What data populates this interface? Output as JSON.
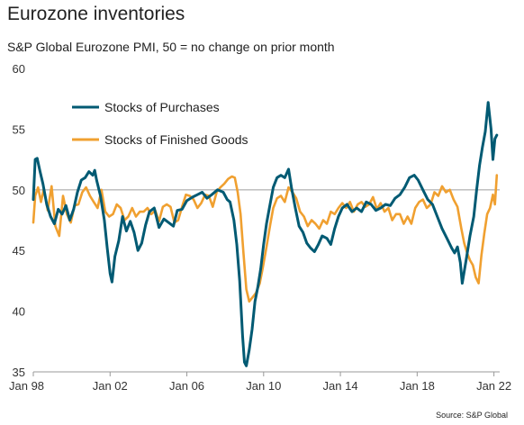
{
  "header": {
    "title": "Eurozone inventories",
    "subtitle": "S&P Global Eurozone PMI, 50 = no change on prior month"
  },
  "footer": {
    "source": "Source: S&P Global"
  },
  "chart_data": {
    "type": "line",
    "title": "Eurozone inventories",
    "subtitle": "S&P Global Eurozone PMI, 50 = no change on prior month",
    "xlabel": "",
    "ylabel": "",
    "ylim": [
      35,
      60
    ],
    "yticks": [
      35,
      40,
      45,
      50,
      55,
      60
    ],
    "xlim": [
      1998.0,
      2022.3
    ],
    "xticks": [
      {
        "value": 1998,
        "label": "Jan 98"
      },
      {
        "value": 2002,
        "label": "Jan 02"
      },
      {
        "value": 2006,
        "label": "Jan 06"
      },
      {
        "value": 2010,
        "label": "Jan 10"
      },
      {
        "value": 2014,
        "label": "Jan 14"
      },
      {
        "value": 2018,
        "label": "Jan 18"
      },
      {
        "value": 2022,
        "label": "Jan 22"
      }
    ],
    "reference_line": 50,
    "grid": false,
    "legend": "top-left",
    "series": [
      {
        "name": "Stocks of Purchases",
        "color": "#005a73",
        "points": [
          [
            1998.0,
            49.2
          ],
          [
            1998.1,
            52.5
          ],
          [
            1998.2,
            52.6
          ],
          [
            1998.35,
            51.5
          ],
          [
            1998.5,
            50.5
          ],
          [
            1998.7,
            48.8
          ],
          [
            1998.9,
            47.8
          ],
          [
            1999.1,
            47.2
          ],
          [
            1999.3,
            48.4
          ],
          [
            1999.5,
            48.0
          ],
          [
            1999.7,
            48.7
          ],
          [
            1999.9,
            47.5
          ],
          [
            2000.1,
            48.4
          ],
          [
            2000.3,
            49.8
          ],
          [
            2000.5,
            50.8
          ],
          [
            2000.7,
            51.0
          ],
          [
            2000.9,
            51.5
          ],
          [
            2001.1,
            51.2
          ],
          [
            2001.2,
            51.6
          ],
          [
            2001.3,
            50.8
          ],
          [
            2001.5,
            49.5
          ],
          [
            2001.7,
            47.5
          ],
          [
            2001.85,
            45.2
          ],
          [
            2002.0,
            43.1
          ],
          [
            2002.1,
            42.4
          ],
          [
            2002.25,
            44.5
          ],
          [
            2002.45,
            45.8
          ],
          [
            2002.65,
            47.8
          ],
          [
            2002.85,
            46.6
          ],
          [
            2003.05,
            47.4
          ],
          [
            2003.25,
            46.5
          ],
          [
            2003.45,
            45.0
          ],
          [
            2003.65,
            45.6
          ],
          [
            2003.85,
            47.1
          ],
          [
            2004.05,
            48.2
          ],
          [
            2004.3,
            48.5
          ],
          [
            2004.55,
            46.9
          ],
          [
            2004.8,
            47.6
          ],
          [
            2005.05,
            47.3
          ],
          [
            2005.3,
            47.0
          ],
          [
            2005.5,
            48.3
          ],
          [
            2005.75,
            48.4
          ],
          [
            2006.0,
            49.1
          ],
          [
            2006.3,
            49.4
          ],
          [
            2006.55,
            49.6
          ],
          [
            2006.8,
            49.8
          ],
          [
            2007.05,
            49.3
          ],
          [
            2007.3,
            49.6
          ],
          [
            2007.6,
            50.0
          ],
          [
            2007.9,
            49.8
          ],
          [
            2008.1,
            49.2
          ],
          [
            2008.25,
            49.0
          ],
          [
            2008.45,
            47.5
          ],
          [
            2008.6,
            45.5
          ],
          [
            2008.75,
            42.5
          ],
          [
            2008.9,
            38.0
          ],
          [
            2009.0,
            35.8
          ],
          [
            2009.1,
            35.5
          ],
          [
            2009.25,
            36.8
          ],
          [
            2009.4,
            38.5
          ],
          [
            2009.55,
            40.8
          ],
          [
            2009.7,
            42.0
          ],
          [
            2009.85,
            43.5
          ],
          [
            2010.0,
            45.5
          ],
          [
            2010.15,
            47.2
          ],
          [
            2010.3,
            48.5
          ],
          [
            2010.5,
            50.2
          ],
          [
            2010.7,
            51.0
          ],
          [
            2010.9,
            51.2
          ],
          [
            2011.1,
            51.0
          ],
          [
            2011.3,
            51.7
          ],
          [
            2011.45,
            50.2
          ],
          [
            2011.65,
            48.5
          ],
          [
            2011.85,
            47.0
          ],
          [
            2012.05,
            46.5
          ],
          [
            2012.25,
            45.6
          ],
          [
            2012.45,
            45.2
          ],
          [
            2012.65,
            44.9
          ],
          [
            2012.85,
            45.5
          ],
          [
            2013.05,
            46.2
          ],
          [
            2013.3,
            46.0
          ],
          [
            2013.5,
            45.5
          ],
          [
            2013.7,
            46.8
          ],
          [
            2013.9,
            47.8
          ],
          [
            2014.1,
            48.5
          ],
          [
            2014.35,
            48.8
          ],
          [
            2014.6,
            48.2
          ],
          [
            2014.85,
            48.5
          ],
          [
            2015.1,
            48.2
          ],
          [
            2015.35,
            49.0
          ],
          [
            2015.6,
            48.8
          ],
          [
            2015.85,
            48.3
          ],
          [
            2016.1,
            48.5
          ],
          [
            2016.35,
            48.8
          ],
          [
            2016.6,
            48.7
          ],
          [
            2016.85,
            49.3
          ],
          [
            2017.1,
            49.6
          ],
          [
            2017.35,
            50.2
          ],
          [
            2017.6,
            51.0
          ],
          [
            2017.85,
            51.2
          ],
          [
            2018.05,
            50.8
          ],
          [
            2018.3,
            50.0
          ],
          [
            2018.55,
            49.2
          ],
          [
            2018.8,
            48.8
          ],
          [
            2019.05,
            47.8
          ],
          [
            2019.3,
            46.8
          ],
          [
            2019.55,
            46.0
          ],
          [
            2019.8,
            45.2
          ],
          [
            2019.95,
            44.8
          ],
          [
            2020.1,
            45.3
          ],
          [
            2020.25,
            44.0
          ],
          [
            2020.35,
            42.3
          ],
          [
            2020.55,
            44.2
          ],
          [
            2020.75,
            46.2
          ],
          [
            2020.95,
            47.8
          ],
          [
            2021.1,
            50.0
          ],
          [
            2021.25,
            52.0
          ],
          [
            2021.4,
            53.5
          ],
          [
            2021.55,
            54.8
          ],
          [
            2021.7,
            57.2
          ],
          [
            2021.85,
            55.0
          ],
          [
            2021.95,
            52.5
          ],
          [
            2022.05,
            54.2
          ],
          [
            2022.15,
            54.5
          ]
        ]
      },
      {
        "name": "Stocks of Finished Goods",
        "color": "#f0a030",
        "points": [
          [
            1998.0,
            47.3
          ],
          [
            1998.1,
            49.5
          ],
          [
            1998.25,
            50.2
          ],
          [
            1998.4,
            49.0
          ],
          [
            1998.55,
            50.1
          ],
          [
            1998.75,
            48.3
          ],
          [
            1998.95,
            50.3
          ],
          [
            1999.15,
            47.0
          ],
          [
            1999.35,
            46.2
          ],
          [
            1999.55,
            49.5
          ],
          [
            1999.75,
            48.0
          ],
          [
            1999.95,
            47.3
          ],
          [
            2000.15,
            48.7
          ],
          [
            2000.35,
            48.8
          ],
          [
            2000.55,
            49.8
          ],
          [
            2000.75,
            50.2
          ],
          [
            2000.95,
            49.5
          ],
          [
            2001.15,
            49.0
          ],
          [
            2001.35,
            48.5
          ],
          [
            2001.55,
            50.0
          ],
          [
            2001.75,
            48.2
          ],
          [
            2001.95,
            47.8
          ],
          [
            2002.15,
            48.0
          ],
          [
            2002.35,
            48.8
          ],
          [
            2002.55,
            48.5
          ],
          [
            2002.75,
            47.5
          ],
          [
            2002.95,
            47.8
          ],
          [
            2003.15,
            48.5
          ],
          [
            2003.35,
            47.8
          ],
          [
            2003.55,
            48.2
          ],
          [
            2003.75,
            48.2
          ],
          [
            2003.95,
            48.5
          ],
          [
            2004.15,
            48.0
          ],
          [
            2004.35,
            48.3
          ],
          [
            2004.55,
            47.4
          ],
          [
            2004.75,
            48.6
          ],
          [
            2004.95,
            48.8
          ],
          [
            2005.15,
            48.6
          ],
          [
            2005.35,
            47.3
          ],
          [
            2005.55,
            47.5
          ],
          [
            2005.75,
            48.6
          ],
          [
            2005.95,
            49.6
          ],
          [
            2006.15,
            49.5
          ],
          [
            2006.35,
            49.2
          ],
          [
            2006.55,
            48.5
          ],
          [
            2006.75,
            48.9
          ],
          [
            2006.95,
            49.6
          ],
          [
            2007.15,
            49.5
          ],
          [
            2007.35,
            48.6
          ],
          [
            2007.55,
            49.8
          ],
          [
            2007.75,
            50.2
          ],
          [
            2007.95,
            50.5
          ],
          [
            2008.15,
            50.9
          ],
          [
            2008.35,
            51.1
          ],
          [
            2008.5,
            51.0
          ],
          [
            2008.65,
            49.8
          ],
          [
            2008.8,
            48.0
          ],
          [
            2008.95,
            44.8
          ],
          [
            2009.1,
            41.8
          ],
          [
            2009.25,
            40.8
          ],
          [
            2009.45,
            41.2
          ],
          [
            2009.6,
            41.5
          ],
          [
            2009.8,
            42.3
          ],
          [
            2009.95,
            43.5
          ],
          [
            2010.15,
            45.3
          ],
          [
            2010.35,
            47.2
          ],
          [
            2010.5,
            48.5
          ],
          [
            2010.7,
            49.3
          ],
          [
            2010.9,
            49.5
          ],
          [
            2011.1,
            49.0
          ],
          [
            2011.3,
            50.2
          ],
          [
            2011.5,
            49.8
          ],
          [
            2011.7,
            49.3
          ],
          [
            2011.9,
            48.2
          ],
          [
            2012.1,
            47.8
          ],
          [
            2012.3,
            47.0
          ],
          [
            2012.5,
            47.5
          ],
          [
            2012.7,
            47.2
          ],
          [
            2012.9,
            46.8
          ],
          [
            2013.1,
            47.5
          ],
          [
            2013.3,
            47.2
          ],
          [
            2013.5,
            48.2
          ],
          [
            2013.7,
            48.0
          ],
          [
            2013.9,
            48.5
          ],
          [
            2014.1,
            48.9
          ],
          [
            2014.3,
            48.5
          ],
          [
            2014.5,
            49.0
          ],
          [
            2014.7,
            48.2
          ],
          [
            2014.9,
            48.8
          ],
          [
            2015.1,
            49.0
          ],
          [
            2015.3,
            48.6
          ],
          [
            2015.5,
            48.8
          ],
          [
            2015.7,
            49.4
          ],
          [
            2015.9,
            48.4
          ],
          [
            2016.1,
            48.9
          ],
          [
            2016.3,
            48.2
          ],
          [
            2016.5,
            48.5
          ],
          [
            2016.7,
            47.5
          ],
          [
            2016.9,
            48.0
          ],
          [
            2017.1,
            48.0
          ],
          [
            2017.3,
            47.2
          ],
          [
            2017.5,
            47.8
          ],
          [
            2017.7,
            47.2
          ],
          [
            2017.9,
            48.5
          ],
          [
            2018.1,
            49.0
          ],
          [
            2018.3,
            49.2
          ],
          [
            2018.5,
            48.5
          ],
          [
            2018.7,
            48.8
          ],
          [
            2018.9,
            49.8
          ],
          [
            2019.1,
            49.5
          ],
          [
            2019.3,
            50.3
          ],
          [
            2019.5,
            49.8
          ],
          [
            2019.7,
            50.0
          ],
          [
            2019.9,
            49.2
          ],
          [
            2020.1,
            48.6
          ],
          [
            2020.3,
            46.8
          ],
          [
            2020.45,
            45.6
          ],
          [
            2020.6,
            44.8
          ],
          [
            2020.75,
            44.2
          ],
          [
            2020.9,
            43.8
          ],
          [
            2021.05,
            42.8
          ],
          [
            2021.2,
            42.3
          ],
          [
            2021.35,
            44.6
          ],
          [
            2021.5,
            46.4
          ],
          [
            2021.65,
            48.0
          ],
          [
            2021.8,
            48.5
          ],
          [
            2021.95,
            49.6
          ],
          [
            2022.05,
            48.8
          ],
          [
            2022.15,
            51.2
          ]
        ]
      }
    ]
  }
}
